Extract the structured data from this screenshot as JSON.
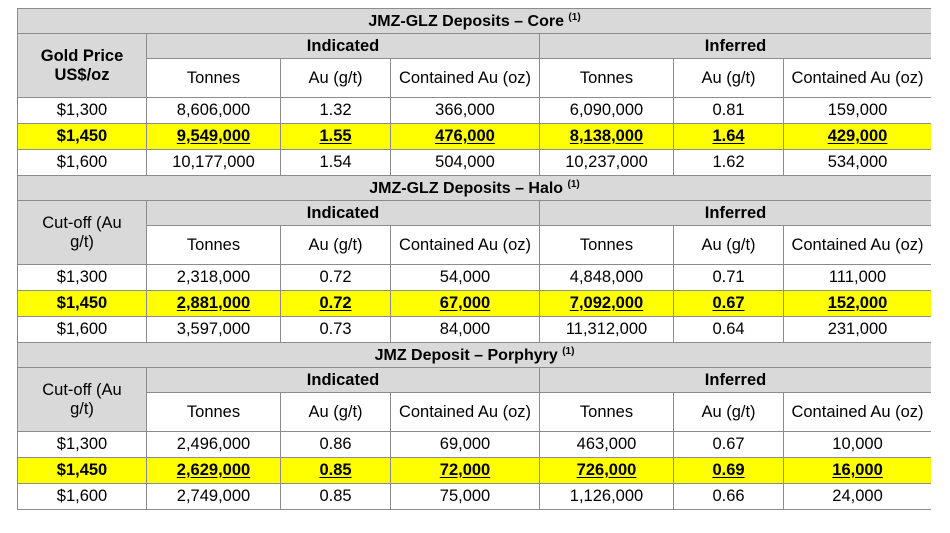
{
  "sections": [
    {
      "title": "JMZ-GLZ Deposits – Core",
      "footnote": "(1)",
      "row_header": [
        "Gold Price",
        "US$/oz"
      ],
      "row_header_bold": true,
      "groups": [
        "Indicated",
        "Inferred"
      ],
      "columns": [
        "Tonnes",
        "Au (g/t)",
        "Contained Au (oz)",
        "Tonnes",
        "Au (g/t)",
        "Contained Au (oz)"
      ],
      "rows": [
        {
          "label": "$1,300",
          "values": [
            "8,606,000",
            "1.32",
            "366,000",
            "6,090,000",
            "0.81",
            "159,000"
          ],
          "highlight": false
        },
        {
          "label": "$1,450",
          "values": [
            "9,549,000",
            "1.55",
            "476,000",
            "8,138,000",
            "1.64",
            "429,000"
          ],
          "highlight": true
        },
        {
          "label": "$1,600",
          "values": [
            "10,177,000",
            "1.54",
            "504,000",
            "10,237,000",
            "1.62",
            "534,000"
          ],
          "highlight": false
        }
      ]
    },
    {
      "title": "JMZ-GLZ Deposits – Halo",
      "footnote": "(1)",
      "row_header": [
        "Cut-off (Au",
        "g/t)"
      ],
      "row_header_bold": false,
      "groups": [
        "Indicated",
        "Inferred"
      ],
      "columns": [
        "Tonnes",
        "Au (g/t)",
        "Contained Au (oz)",
        "Tonnes",
        "Au (g/t)",
        "Contained Au (oz)"
      ],
      "rows": [
        {
          "label": "$1,300",
          "values": [
            "2,318,000",
            "0.72",
            "54,000",
            "4,848,000",
            "0.71",
            "111,000"
          ],
          "highlight": false
        },
        {
          "label": "$1,450",
          "values": [
            "2,881,000",
            "0.72",
            "67,000",
            "7,092,000",
            "0.67",
            "152,000"
          ],
          "highlight": true
        },
        {
          "label": "$1,600",
          "values": [
            "3,597,000",
            "0.73",
            "84,000",
            "11,312,000",
            "0.64",
            "231,000"
          ],
          "highlight": false
        }
      ]
    },
    {
      "title": "JMZ Deposit – Porphyry",
      "footnote": "(1)",
      "row_header": [
        "Cut-off (Au",
        "g/t)"
      ],
      "row_header_bold": false,
      "groups": [
        "Indicated",
        "Inferred"
      ],
      "columns": [
        "Tonnes",
        "Au (g/t)",
        "Contained Au (oz)",
        "Tonnes",
        "Au (g/t)",
        "Contained Au (oz)"
      ],
      "rows": [
        {
          "label": "$1,300",
          "values": [
            "2,496,000",
            "0.86",
            "69,000",
            "463,000",
            "0.67",
            "10,000"
          ],
          "highlight": false
        },
        {
          "label": "$1,450",
          "values": [
            "2,629,000",
            "0.85",
            "72,000",
            "726,000",
            "0.69",
            "16,000"
          ],
          "highlight": true
        },
        {
          "label": "$1,600",
          "values": [
            "2,749,000",
            "0.85",
            "75,000",
            "1,126,000",
            "0.66",
            "24,000"
          ],
          "highlight": false
        }
      ]
    }
  ]
}
